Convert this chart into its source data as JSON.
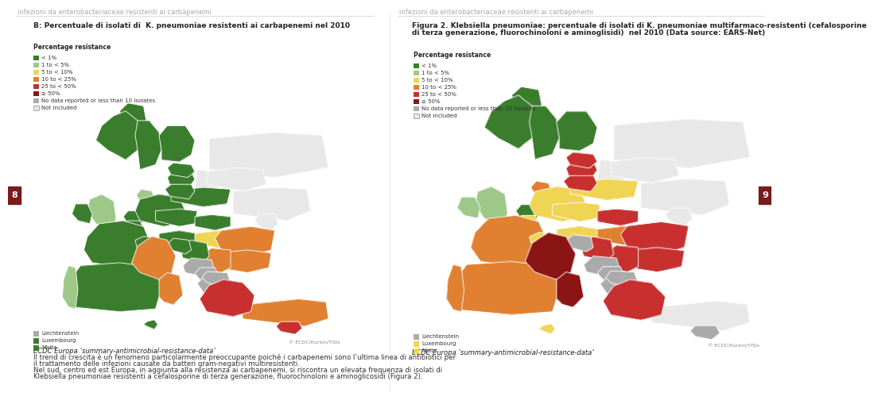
{
  "background_color": "#ffffff",
  "header_line_color": "#cccccc",
  "header_text_left": "infezioni da enterobacteriaceae resistenti ai carbapenemi",
  "header_text_right": "infezioni da enterobacteriaceae resistenti ai carbapenemi",
  "header_font_size": 6,
  "header_text_color": "#aaaaaa",
  "page_number_left": "8",
  "page_number_right": "9",
  "page_number_color": "#ffffff",
  "page_number_bg": "#7a1a1a",
  "map_title_left": "B: Percentuale di isolati di  K. pneumoniae resistenti ai carbapenemi nel 2010",
  "map_title_right_line1": "Figura 2. Klebsiella pneumoniae: percentuale di isolati di K. pneumoniae multifarmaco-resistenti (cefalosporine",
  "map_title_right_line2": "di terza generazione, fluorochinoloni e aminoglisidi)  nel 2010 (Data source: EARS-Net)",
  "map_title_font_size": 6.5,
  "legend_title": "Percentage resistance",
  "legend_items": [
    {
      "label": "< 1%",
      "color": "#3a7d2c"
    },
    {
      "label": "1 to < 5%",
      "color": "#9ec888"
    },
    {
      "label": "5 to < 10%",
      "color": "#f0d555"
    },
    {
      "label": "10 to < 25%",
      "color": "#e08030"
    },
    {
      "label": "25 to < 50%",
      "color": "#c83030"
    },
    {
      "label": "≥ 50%",
      "color": "#8b1515"
    },
    {
      "label": "No data reported or less than 10 isolates",
      "color": "#aaaaaa"
    },
    {
      "label": "Not included",
      "color": "#e8e8e8"
    }
  ],
  "footer_source_left": "ECDC Europa ‘summary-antimicrobial-resistance-data’",
  "footer_source_right": "ECDC Europa ‘summary-antimicrobial-resistance-data’",
  "footer_line1": "Il trend di crescita è un fenomeno particolarmente preoccupante poiché i carbapenemi sono l’ultima linea di antibiotici per",
  "footer_line2": "il trattamento delle infezioni causate da batteri gram-negativi multiresistenti.",
  "footer_line3": "Nel sud, centro ed est Europa, in aggiunta alla resistenza ai carbapenemi, si riscontra un elevata frequenza di isolati di",
  "footer_line4": "Klebsiella pneumoniae resistenti a cefalosporine di terza generazione, fluorochinoloni e aminoglicosidi (Figura 2).",
  "footer_font_size": 6.2,
  "copyright": "© ECDC/Eurion/TISIs",
  "sea_color": "#d0dfe8",
  "outside_color": "#e8e8e8",
  "left_countries": {
    "norway": "#3a7d2c",
    "sweden": "#3a7d2c",
    "finland": "#3a7d2c",
    "iceland": "#3a7d2c",
    "uk": "#9ec888",
    "ireland": "#3a7d2c",
    "france": "#3a7d2c",
    "spain": "#3a7d2c",
    "portugal": "#9ec888",
    "germany": "#3a7d2c",
    "netherlands": "#3a7d2c",
    "belgium": "#3a7d2c",
    "luxembourg": "#3a7d2c",
    "denmark": "#9ec888",
    "poland": "#3a7d2c",
    "czech": "#3a7d2c",
    "slovakia": "#3a7d2c",
    "austria": "#3a7d2c",
    "switzerland": "#3a7d2c",
    "hungary": "#f0d555",
    "romania": "#e08030",
    "bulgaria": "#e08030",
    "greece": "#c83030",
    "italy": "#e08030",
    "croatia": "#3a7d2c",
    "slovenia": "#3a7d2c",
    "serbia": "#e08030",
    "albania": "#aaaaaa",
    "north_macedonia": "#aaaaaa",
    "montenegro": "#aaaaaa",
    "bosnia": "#aaaaaa",
    "latvia": "#3a7d2c",
    "lithuania": "#3a7d2c",
    "estonia": "#3a7d2c",
    "russia": "#e8e8e8",
    "ukraine": "#e8e8e8",
    "belarus": "#e8e8e8",
    "moldova": "#e8e8e8",
    "turkey": "#e08030",
    "cyprus": "#c83030",
    "malta_island": "#3a7d2c"
  },
  "right_countries": {
    "norway": "#3a7d2c",
    "sweden": "#3a7d2c",
    "finland": "#3a7d2c",
    "iceland": "#3a7d2c",
    "uk": "#9ec888",
    "ireland": "#9ec888",
    "france": "#e08030",
    "spain": "#e08030",
    "portugal": "#e08030",
    "germany": "#f0d555",
    "netherlands": "#3a7d2c",
    "belgium": "#f0d555",
    "luxembourg": "#f0d555",
    "denmark": "#e08030",
    "poland": "#f0d555",
    "czech": "#f0d555",
    "slovakia": "#c83030",
    "austria": "#f0d555",
    "switzerland": "#f0d555",
    "hungary": "#e08030",
    "romania": "#c83030",
    "bulgaria": "#c83030",
    "greece": "#c83030",
    "italy": "#8b1515",
    "croatia": "#c83030",
    "slovenia": "#aaaaaa",
    "serbia": "#c83030",
    "albania": "#aaaaaa",
    "north_macedonia": "#aaaaaa",
    "montenegro": "#aaaaaa",
    "bosnia": "#aaaaaa",
    "latvia": "#c83030",
    "lithuania": "#c83030",
    "estonia": "#c83030",
    "russia": "#e8e8e8",
    "ukraine": "#e8e8e8",
    "belarus": "#e8e8e8",
    "moldova": "#e8e8e8",
    "turkey": "#e8e8e8",
    "cyprus": "#aaaaaa",
    "malta_island": "#f0d555"
  },
  "liechtenstein_left": "#aaaaaa",
  "luxembourg_left": "#3a7d2c",
  "malta_left": "#3a7d2c",
  "liechtenstein_right": "#aaaaaa",
  "luxembourg_right": "#f0d555",
  "malta_right": "#f0d555"
}
